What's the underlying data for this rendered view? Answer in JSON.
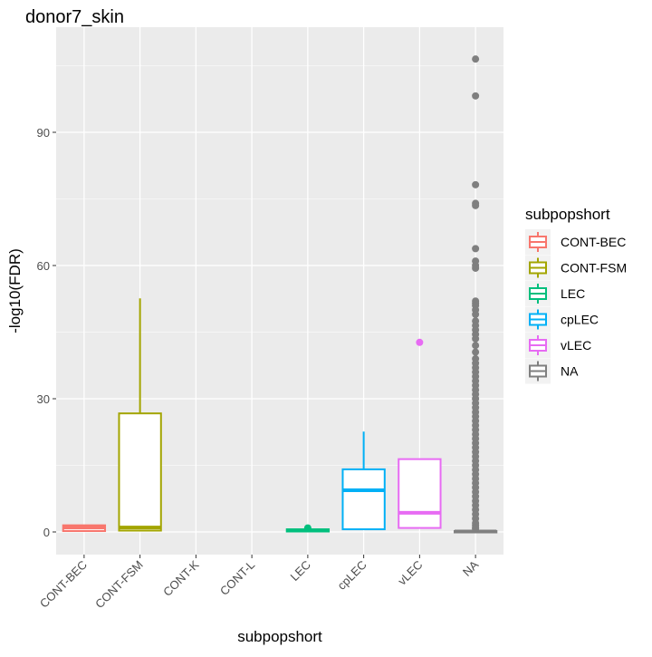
{
  "chart_data": {
    "type": "boxplot",
    "title": "donor7_skin",
    "xlabel": "subpopshort",
    "ylabel": "-log10(FDR)",
    "ylim": [
      -5,
      110
    ],
    "yticks": [
      0,
      30,
      60,
      90
    ],
    "grid": true,
    "legend": {
      "title": "subpopshort",
      "placement": "right"
    },
    "categories": [
      "CONT-BEC",
      "CONT-FSM",
      "CONT-K",
      "CONT-L",
      "LEC",
      "cpLEC",
      "vLEC",
      "NA"
    ],
    "series": [
      {
        "name": "CONT-BEC",
        "color": "#F8766D",
        "min": 0.2,
        "q1": 0.2,
        "median": 1.0,
        "q3": 1.5,
        "max": 1.5,
        "outliers": []
      },
      {
        "name": "CONT-FSM",
        "color": "#A3A500",
        "min": 0.3,
        "q1": 0.3,
        "median": 1.0,
        "q3": 26.7,
        "max": 52.6,
        "outliers": []
      },
      {
        "name": "CONT-K",
        "color": "#888888",
        "min": null,
        "q1": null,
        "median": null,
        "q3": null,
        "max": null,
        "outliers": []
      },
      {
        "name": "CONT-L",
        "color": "#888888",
        "min": null,
        "q1": null,
        "median": null,
        "q3": null,
        "max": null,
        "outliers": []
      },
      {
        "name": "LEC",
        "color": "#00BF7D",
        "min": 0.0,
        "q1": 0.1,
        "median": 0.3,
        "q3": 0.6,
        "max": 0.8,
        "outliers": [
          0.9
        ]
      },
      {
        "name": "cpLEC",
        "color": "#00B0F6",
        "min": 0.6,
        "q1": 0.6,
        "median": 9.4,
        "q3": 14.1,
        "max": 22.6,
        "outliers": []
      },
      {
        "name": "vLEC",
        "color": "#E76BF3",
        "min": 0.9,
        "q1": 0.9,
        "median": 4.3,
        "q3": 16.4,
        "max": 16.4,
        "outliers": [
          42.7
        ]
      },
      {
        "name": "NA",
        "color": "#7F7F7F",
        "min": 0.0,
        "q1": 0.05,
        "median": 0.1,
        "q3": 0.2,
        "max": 0.4,
        "outliers": [
          106.5,
          98.2,
          78.2,
          74.0,
          73.5,
          63.8,
          61.0,
          60.0,
          59.4,
          52.0,
          51.5,
          51.0,
          50.0,
          49.0,
          47.5,
          46.5,
          45.5,
          44.5,
          43.5,
          42.0,
          40.5,
          39.0,
          38.0,
          37.0,
          36.0,
          35.0,
          34.0,
          33.0,
          32.0,
          31.0,
          30.0,
          29.0,
          28.0,
          27.0,
          26.0,
          25.0,
          24.0,
          23.0,
          22.0,
          21.0,
          20.0,
          19.0,
          18.0,
          17.0,
          16.0,
          15.0,
          14.0,
          13.0,
          12.0,
          11.0,
          10.0,
          9.0,
          8.0,
          7.0,
          6.0,
          5.0,
          4.0,
          3.0,
          2.0,
          1.5,
          1.0,
          0.7
        ]
      }
    ],
    "legend_entries": [
      "CONT-BEC",
      "CONT-FSM",
      "LEC",
      "cpLEC",
      "vLEC",
      "NA"
    ]
  }
}
